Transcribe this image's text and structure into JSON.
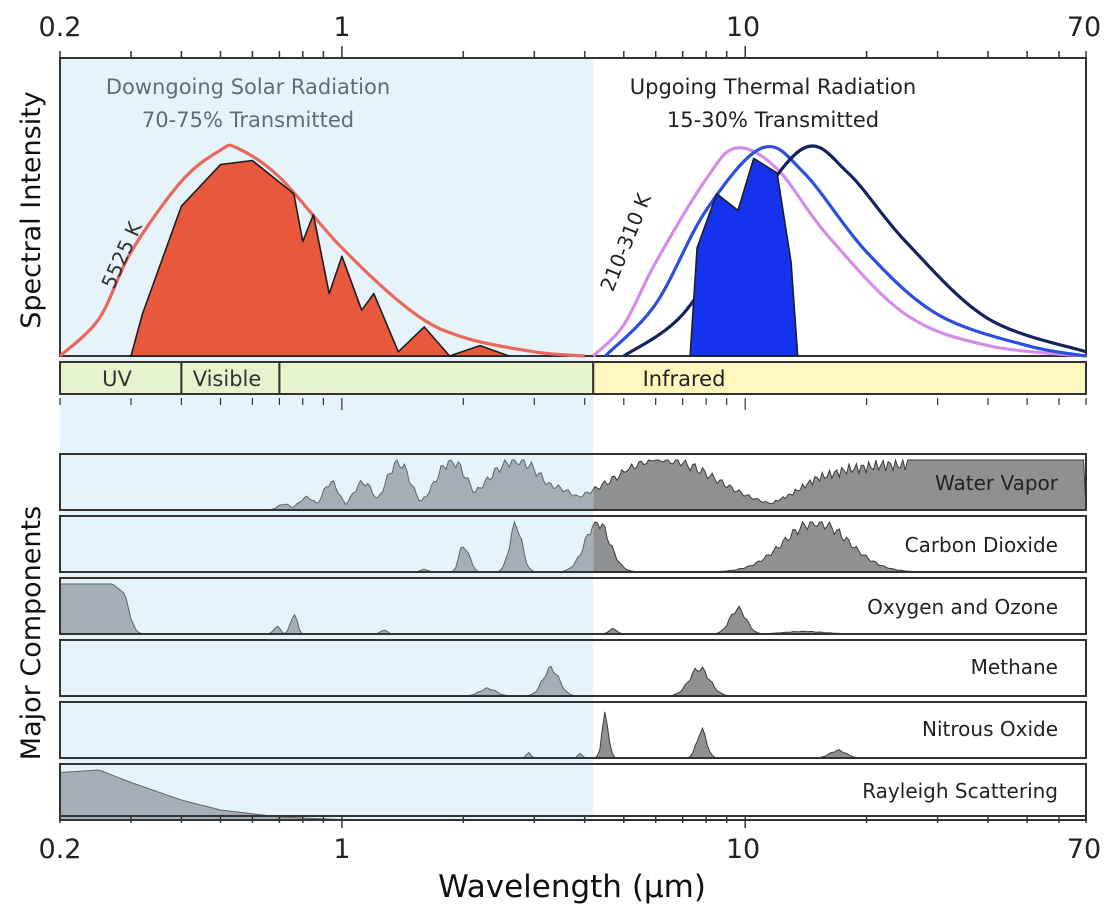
{
  "chart_data": [
    {
      "type": "area",
      "panel": "spectral-intensity",
      "ylabel": "Spectral Intensity",
      "x_scale": "log",
      "xlim": [
        0.2,
        70
      ],
      "x_ticks": [
        0.2,
        1,
        10,
        70
      ],
      "annotations": {
        "solar_title_line1": "Downgoing Solar Radiation",
        "solar_title_line2": "70-75% Transmitted",
        "thermal_title_line1": "Upgoing Thermal Radiation",
        "thermal_title_line2": "15-30% Transmitted",
        "solar_curve_label": "5525 K",
        "thermal_curve_label": "210-310 K"
      },
      "bands": [
        {
          "label": "UV",
          "range": [
            0.2,
            0.4
          ]
        },
        {
          "label": "Visible",
          "range": [
            0.4,
            0.7
          ]
        },
        {
          "label": "",
          "range": [
            0.7,
            4.2
          ]
        },
        {
          "label": "Infrared",
          "range": [
            4.2,
            70
          ]
        }
      ],
      "series": [
        {
          "label": "5525 K",
          "kind": "blackbody-curve",
          "color": "#e8685a",
          "points": [
            [
              0.2,
              0.0
            ],
            [
              0.25,
              0.18
            ],
            [
              0.3,
              0.5
            ],
            [
              0.4,
              0.84
            ],
            [
              0.5,
              0.99
            ],
            [
              0.55,
              1.0
            ],
            [
              0.7,
              0.86
            ],
            [
              1.0,
              0.52
            ],
            [
              1.5,
              0.21
            ],
            [
              2.0,
              0.09
            ],
            [
              3.0,
              0.02
            ],
            [
              4.0,
              0.0
            ]
          ]
        },
        {
          "kind": "transmitted-solar",
          "color": "#e8583c",
          "points": [
            [
              0.3,
              0.0
            ],
            [
              0.32,
              0.2
            ],
            [
              0.4,
              0.72
            ],
            [
              0.5,
              0.92
            ],
            [
              0.6,
              0.94
            ],
            [
              0.76,
              0.78
            ],
            [
              0.8,
              0.55
            ],
            [
              0.85,
              0.68
            ],
            [
              0.93,
              0.3
            ],
            [
              1.0,
              0.48
            ],
            [
              1.12,
              0.22
            ],
            [
              1.2,
              0.3
            ],
            [
              1.38,
              0.02
            ],
            [
              1.6,
              0.14
            ],
            [
              1.85,
              0.0
            ],
            [
              2.2,
              0.05
            ],
            [
              2.6,
              0.0
            ]
          ]
        },
        {
          "label": "210-310 K",
          "kind": "blackbody-curve",
          "color": "#d58ee6",
          "points": [
            [
              4.2,
              0.0
            ],
            [
              5.0,
              0.15
            ],
            [
              6.0,
              0.45
            ],
            [
              8.0,
              0.85
            ],
            [
              9.5,
              1.0
            ],
            [
              12.0,
              0.9
            ],
            [
              16.0,
              0.58
            ],
            [
              25.0,
              0.2
            ],
            [
              40.0,
              0.05
            ],
            [
              70.0,
              0.0
            ]
          ]
        },
        {
          "kind": "blackbody-curve",
          "color": "#2b4fe0",
          "points": [
            [
              4.5,
              0.0
            ],
            [
              6.0,
              0.25
            ],
            [
              8.0,
              0.7
            ],
            [
              11.0,
              1.0
            ],
            [
              14.0,
              0.88
            ],
            [
              20.0,
              0.5
            ],
            [
              30.0,
              0.2
            ],
            [
              50.0,
              0.05
            ],
            [
              70.0,
              0.0
            ]
          ]
        },
        {
          "kind": "blackbody-curve",
          "color": "#142360",
          "points": [
            [
              5.0,
              0.0
            ],
            [
              7.0,
              0.2
            ],
            [
              10.0,
              0.65
            ],
            [
              14.0,
              1.0
            ],
            [
              18.0,
              0.88
            ],
            [
              25.0,
              0.55
            ],
            [
              40.0,
              0.18
            ],
            [
              70.0,
              0.02
            ]
          ]
        },
        {
          "kind": "transmitted-thermal",
          "color": "#1533ee",
          "points": [
            [
              7.3,
              0.0
            ],
            [
              7.6,
              0.52
            ],
            [
              8.5,
              0.78
            ],
            [
              9.6,
              0.7
            ],
            [
              10.5,
              0.95
            ],
            [
              12.0,
              0.88
            ],
            [
              13.0,
              0.45
            ],
            [
              13.5,
              0.0
            ]
          ]
        }
      ]
    },
    {
      "type": "area",
      "panel": "major-components",
      "ylabel": "Major Components",
      "xlabel": "Wavelength (μm)",
      "x_scale": "log",
      "xlim": [
        0.2,
        70
      ],
      "x_ticks": [
        0.2,
        1,
        10,
        70
      ],
      "series": [
        {
          "name": "Water Vapor",
          "peaks": [
            [
              0.72,
              0.12,
              0.015
            ],
            [
              0.82,
              0.25,
              0.02
            ],
            [
              0.94,
              0.55,
              0.02
            ],
            [
              1.13,
              0.55,
              0.025
            ],
            [
              1.38,
              0.95,
              0.03
            ],
            [
              1.87,
              0.98,
              0.04
            ],
            [
              2.7,
              1.0,
              0.07
            ],
            [
              3.2,
              0.5,
              0.07
            ],
            [
              6.3,
              1.0,
              0.13
            ],
            [
              7.0,
              0.7,
              0.08
            ]
          ],
          "base": 0.05,
          "extra": [
            [
              4.2,
              0.0
            ],
            [
              5.0,
              0.75
            ],
            [
              6.0,
              1.0
            ],
            [
              7.2,
              0.85
            ],
            [
              8.0,
              0.35
            ],
            [
              9.5,
              0.05
            ],
            [
              11.0,
              0.05
            ],
            [
              13.0,
              0.35
            ],
            [
              15.0,
              0.7
            ],
            [
              18.0,
              0.9
            ],
            [
              22.0,
              1.0
            ],
            [
              70.0,
              1.0
            ]
          ]
        },
        {
          "name": "Carbon Dioxide",
          "peaks": [
            [
              1.6,
              0.05,
              0.01
            ],
            [
              2.0,
              0.55,
              0.01
            ],
            [
              2.05,
              0.35,
              0.01
            ],
            [
              2.7,
              0.95,
              0.015
            ],
            [
              4.3,
              1.0,
              0.03
            ],
            [
              4.8,
              0.25,
              0.01
            ],
            [
              15.0,
              1.0,
              0.08
            ]
          ]
        },
        {
          "name": "Oxygen and Ozone",
          "peaks": [
            [
              0.69,
              0.15,
              0.008
            ],
            [
              0.76,
              0.4,
              0.008
            ],
            [
              1.27,
              0.08,
              0.008
            ],
            [
              4.7,
              0.1,
              0.01
            ],
            [
              9.6,
              0.5,
              0.02
            ],
            [
              14.0,
              0.05,
              0.05
            ]
          ],
          "extra": [
            [
              0.2,
              1.0
            ],
            [
              0.27,
              1.0
            ],
            [
              0.29,
              0.8
            ],
            [
              0.3,
              0.3
            ],
            [
              0.31,
              0.05
            ],
            [
              0.32,
              0.0
            ]
          ]
        },
        {
          "name": "Methane",
          "peaks": [
            [
              2.3,
              0.15,
              0.02
            ],
            [
              3.3,
              0.55,
              0.02
            ],
            [
              7.7,
              0.55,
              0.025
            ]
          ]
        },
        {
          "name": "Nitrous Oxide",
          "peaks": [
            [
              2.9,
              0.12,
              0.005
            ],
            [
              3.9,
              0.1,
              0.005
            ],
            [
              4.5,
              0.85,
              0.008
            ],
            [
              7.8,
              0.55,
              0.012
            ],
            [
              17.0,
              0.15,
              0.02
            ]
          ]
        },
        {
          "name": "Rayleigh Scattering",
          "extra": [
            [
              0.2,
              0.95
            ],
            [
              0.25,
              1.0
            ],
            [
              0.3,
              0.75
            ],
            [
              0.4,
              0.4
            ],
            [
              0.5,
              0.2
            ],
            [
              0.7,
              0.06
            ],
            [
              1.0,
              0.01
            ],
            [
              1.5,
              0.0
            ],
            [
              70.0,
              0.0
            ]
          ]
        }
      ]
    }
  ],
  "colors": {
    "shade": "#e6f3fb",
    "uv_visible_band": "#e6f4cd",
    "infrared_band": "#fdf6bd",
    "component_left": "#a4aeb6",
    "component_right": "#8f9092"
  }
}
